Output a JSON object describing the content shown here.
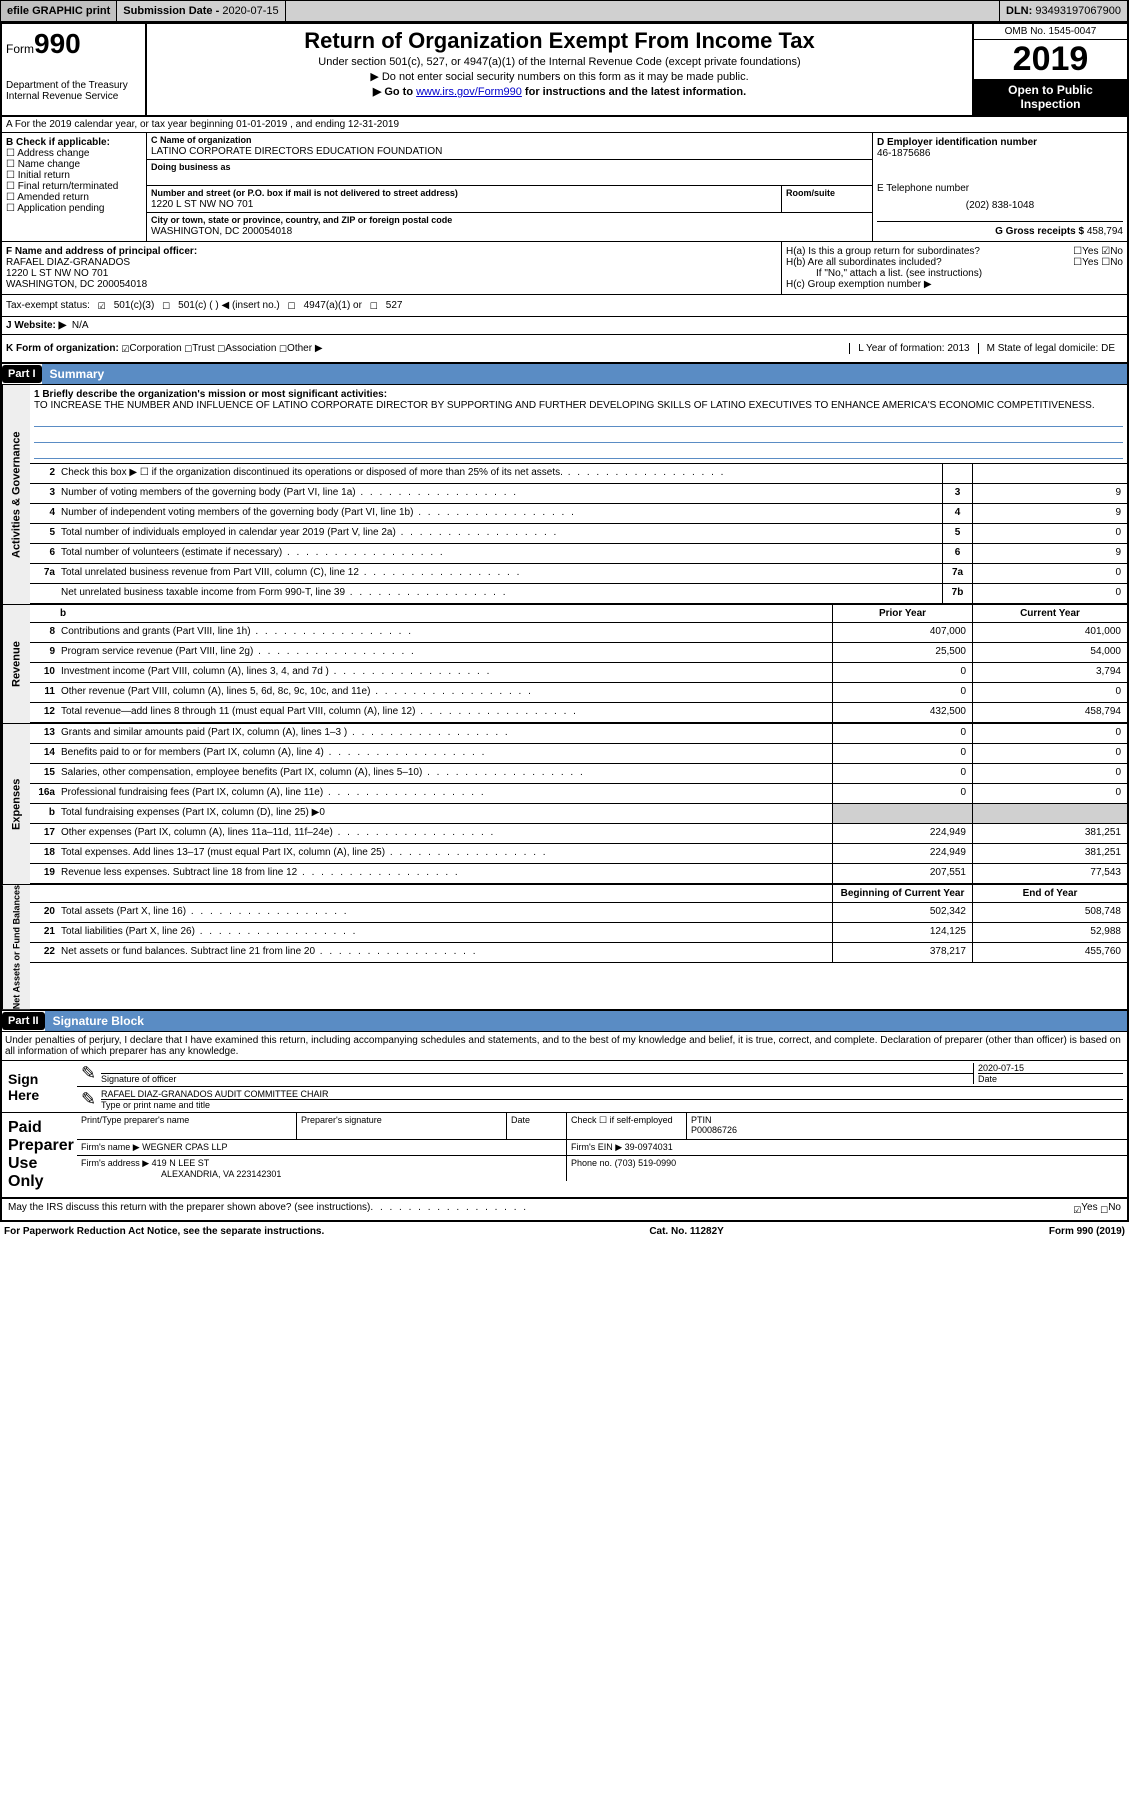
{
  "topbar": {
    "efile": "efile GRAPHIC print",
    "subdate_label": "Submission Date -",
    "subdate": "2020-07-15",
    "dln_label": "DLN:",
    "dln": "93493197067900"
  },
  "header": {
    "form_prefix": "Form",
    "form_num": "990",
    "dept": "Department of the Treasury",
    "irs": "Internal Revenue Service",
    "title": "Return of Organization Exempt From Income Tax",
    "subtitle": "Under section 501(c), 527, or 4947(a)(1) of the Internal Revenue Code (except private foundations)",
    "note1": "▶ Do not enter social security numbers on this form as it may be made public.",
    "note2_pre": "▶ Go to ",
    "note2_link": "www.irs.gov/Form990",
    "note2_post": " for instructions and the latest information.",
    "omb": "OMB No. 1545-0047",
    "year": "2019",
    "inspect1": "Open to Public",
    "inspect2": "Inspection"
  },
  "rowA": "A For the 2019 calendar year, or tax year beginning 01-01-2019    , and ending 12-31-2019",
  "checkB": {
    "label": "B Check if applicable:",
    "items": [
      "Address change",
      "Name change",
      "Initial return",
      "Final return/terminated",
      "Amended return",
      "Application pending"
    ]
  },
  "org": {
    "name_label": "C Name of organization",
    "name": "LATINO CORPORATE DIRECTORS EDUCATION FOUNDATION",
    "dba_label": "Doing business as",
    "addr_label": "Number and street (or P.O. box if mail is not delivered to street address)",
    "room_label": "Room/suite",
    "addr": "1220 L ST NW NO 701",
    "city_label": "City or town, state or province, country, and ZIP or foreign postal code",
    "city": "WASHINGTON, DC  200054018"
  },
  "ein": {
    "label": "D Employer identification number",
    "value": "46-1875686"
  },
  "phone": {
    "label": "E Telephone number",
    "value": "(202) 838-1048"
  },
  "gross": {
    "label": "G Gross receipts $",
    "value": "458,794"
  },
  "officerF": {
    "label": "F  Name and address of principal officer:",
    "name": "RAFAEL DIAZ-GRANADOS",
    "addr1": "1220 L ST NW NO 701",
    "addr2": "WASHINGTON, DC  200054018"
  },
  "H": {
    "a": "H(a)  Is this a group return for subordinates?",
    "b": "H(b)  Are all subordinates included?",
    "b_note": "If \"No,\" attach a list. (see instructions)",
    "c": "H(c)  Group exemption number ▶",
    "yes": "Yes",
    "no": "No"
  },
  "taxexempt": {
    "label": "Tax-exempt status:",
    "c3": "501(c)(3)",
    "c": "501(c) (   ) ◀ (insert no.)",
    "a1": "4947(a)(1) or",
    "s527": "527"
  },
  "J": {
    "label": "J   Website: ▶",
    "value": "N/A"
  },
  "K": {
    "label": "K Form of organization:",
    "corp": "Corporation",
    "trust": "Trust",
    "assoc": "Association",
    "other": "Other ▶",
    "L": "L Year of formation: 2013",
    "M": "M State of legal domicile: DE"
  },
  "part1": {
    "label": "Part I",
    "title": "Summary"
  },
  "mission": {
    "l1": "1  Briefly describe the organization's mission or most significant activities:",
    "text": "TO INCREASE THE NUMBER AND INFLUENCE OF LATINO CORPORATE DIRECTOR BY SUPPORTING AND FURTHER DEVELOPING SKILLS OF LATINO EXECUTIVES TO ENHANCE AMERICA'S ECONOMIC COMPETITIVENESS."
  },
  "sections": {
    "gov_label": "Activities & Governance",
    "rev_label": "Revenue",
    "exp_label": "Expenses",
    "net_label": "Net Assets or Fund Balances"
  },
  "gov_lines": [
    {
      "n": "2",
      "d": "Check this box ▶ ☐  if the organization discontinued its operations or disposed of more than 25% of its net assets.",
      "box": "",
      "v": ""
    },
    {
      "n": "3",
      "d": "Number of voting members of the governing body (Part VI, line 1a)",
      "box": "3",
      "v": "9"
    },
    {
      "n": "4",
      "d": "Number of independent voting members of the governing body (Part VI, line 1b)",
      "box": "4",
      "v": "9"
    },
    {
      "n": "5",
      "d": "Total number of individuals employed in calendar year 2019 (Part V, line 2a)",
      "box": "5",
      "v": "0"
    },
    {
      "n": "6",
      "d": "Total number of volunteers (estimate if necessary)",
      "box": "6",
      "v": "9"
    },
    {
      "n": "7a",
      "d": "Total unrelated business revenue from Part VIII, column (C), line 12",
      "box": "7a",
      "v": "0"
    },
    {
      "n": "",
      "d": "Net unrelated business taxable income from Form 990-T, line 39",
      "box": "7b",
      "v": "0"
    }
  ],
  "col_headers": {
    "prior": "Prior Year",
    "current": "Current Year",
    "boy": "Beginning of Current Year",
    "eoy": "End of Year"
  },
  "rev_lines": [
    {
      "n": "8",
      "d": "Contributions and grants (Part VIII, line 1h)",
      "p": "407,000",
      "c": "401,000"
    },
    {
      "n": "9",
      "d": "Program service revenue (Part VIII, line 2g)",
      "p": "25,500",
      "c": "54,000"
    },
    {
      "n": "10",
      "d": "Investment income (Part VIII, column (A), lines 3, 4, and 7d )",
      "p": "0",
      "c": "3,794"
    },
    {
      "n": "11",
      "d": "Other revenue (Part VIII, column (A), lines 5, 6d, 8c, 9c, 10c, and 11e)",
      "p": "0",
      "c": "0"
    },
    {
      "n": "12",
      "d": "Total revenue—add lines 8 through 11 (must equal Part VIII, column (A), line 12)",
      "p": "432,500",
      "c": "458,794"
    }
  ],
  "exp_lines": [
    {
      "n": "13",
      "d": "Grants and similar amounts paid (Part IX, column (A), lines 1–3 )",
      "p": "0",
      "c": "0"
    },
    {
      "n": "14",
      "d": "Benefits paid to or for members (Part IX, column (A), line 4)",
      "p": "0",
      "c": "0"
    },
    {
      "n": "15",
      "d": "Salaries, other compensation, employee benefits (Part IX, column (A), lines 5–10)",
      "p": "0",
      "c": "0"
    },
    {
      "n": "16a",
      "d": "Professional fundraising fees (Part IX, column (A), line 11e)",
      "p": "0",
      "c": "0"
    },
    {
      "n": "b",
      "d": "Total fundraising expenses (Part IX, column (D), line 25) ▶0",
      "p": "",
      "c": "",
      "shade": true
    },
    {
      "n": "17",
      "d": "Other expenses (Part IX, column (A), lines 11a–11d, 11f–24e)",
      "p": "224,949",
      "c": "381,251"
    },
    {
      "n": "18",
      "d": "Total expenses. Add lines 13–17 (must equal Part IX, column (A), line 25)",
      "p": "224,949",
      "c": "381,251"
    },
    {
      "n": "19",
      "d": "Revenue less expenses. Subtract line 18 from line 12",
      "p": "207,551",
      "c": "77,543"
    }
  ],
  "net_lines": [
    {
      "n": "20",
      "d": "Total assets (Part X, line 16)",
      "p": "502,342",
      "c": "508,748"
    },
    {
      "n": "21",
      "d": "Total liabilities (Part X, line 26)",
      "p": "124,125",
      "c": "52,988"
    },
    {
      "n": "22",
      "d": "Net assets or fund balances. Subtract line 21 from line 20",
      "p": "378,217",
      "c": "455,760"
    }
  ],
  "part2": {
    "label": "Part II",
    "title": "Signature Block"
  },
  "sig": {
    "decl": "Under penalties of perjury, I declare that I have examined this return, including accompanying schedules and statements, and to the best of my knowledge and belief, it is true, correct, and complete. Declaration of preparer (other than officer) is based on all information of which preparer has any knowledge.",
    "here": "Sign Here",
    "sig_label": "Signature of officer",
    "date_label": "Date",
    "date": "2020-07-15",
    "name": "RAFAEL DIAZ-GRANADOS AUDIT COMMITTEE CHAIR",
    "name_label": "Type or print name and title",
    "paid": "Paid Preparer Use Only",
    "prep_name_label": "Print/Type preparer's name",
    "prep_sig_label": "Preparer's signature",
    "prep_date_label": "Date",
    "check_self": "Check ☐ if self-employed",
    "ptin_label": "PTIN",
    "ptin": "P00086726",
    "firm_name_label": "Firm's name     ▶",
    "firm_name": "WEGNER CPAS LLP",
    "firm_ein_label": "Firm's EIN ▶",
    "firm_ein": "39-0974031",
    "firm_addr_label": "Firm's address ▶",
    "firm_addr1": "419 N LEE ST",
    "firm_addr2": "ALEXANDRIA, VA  223142301",
    "phone_label": "Phone no.",
    "phone": "(703) 519-0990",
    "discuss": "May the IRS discuss this return with the preparer shown above? (see instructions)",
    "yes": "Yes",
    "no": "No"
  },
  "footer": {
    "l": "For Paperwork Reduction Act Notice, see the separate instructions.",
    "m": "Cat. No. 11282Y",
    "r": "Form 990 (2019)"
  }
}
